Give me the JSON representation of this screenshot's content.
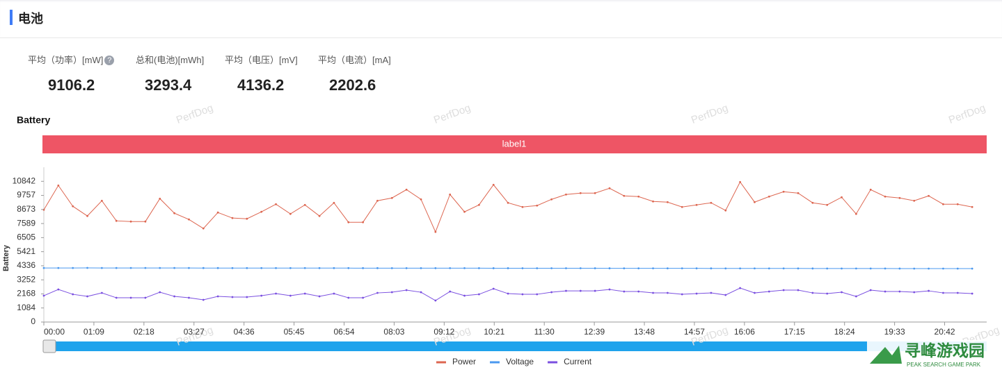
{
  "header": {
    "title": "电池"
  },
  "stats": [
    {
      "label": "平均（功率）[mW]",
      "value": 9106.2
    },
    {
      "label": "总和(电池)[mWh]",
      "value": 3293.4
    },
    {
      "label": "平均（电压）[mV]",
      "value": 4136.2
    },
    {
      "label": "平均（电流）[mA]",
      "value": 2202.6
    }
  ],
  "watermark": "PerfDog",
  "logo": {
    "title": "寻峰游戏园",
    "subtitle": "PEAK SEARCH GAME PARK"
  },
  "chart_data": {
    "type": "line",
    "title": "Battery",
    "band_label": "label1",
    "band_color": "#ee5565",
    "y_label": "Battery",
    "x": [
      0,
      20,
      40,
      60,
      80,
      100,
      120,
      140,
      160,
      180,
      200,
      220,
      240,
      260,
      280,
      300,
      320,
      340,
      360,
      380,
      400,
      420,
      440,
      460,
      480,
      500,
      520,
      540,
      560,
      580,
      600,
      620,
      640,
      660,
      680,
      700,
      720,
      740,
      760,
      780,
      800,
      820,
      840,
      860,
      880,
      900,
      920,
      940,
      960,
      980,
      1000,
      1020,
      1040,
      1060,
      1080,
      1100,
      1120,
      1140,
      1160,
      1180,
      1200,
      1220,
      1240,
      1260,
      1280
    ],
    "series": [
      {
        "name": "Power",
        "color": "#dd6650",
        "values": [
          8652,
          10522,
          8919,
          8172,
          9347,
          7798,
          7744,
          7744,
          9507,
          8385,
          7905,
          7210,
          8439,
          8012,
          7958,
          8492,
          9080,
          8332,
          9026,
          8172,
          9187,
          7691,
          7691,
          9347,
          9560,
          10201,
          9454,
          6943,
          9827,
          8492,
          9026,
          10575,
          9187,
          8866,
          8973,
          9454,
          9827,
          9934,
          9934,
          10308,
          9721,
          9667,
          9293,
          9240,
          8866,
          9026,
          9187,
          8599,
          10789,
          9240,
          9667,
          10041,
          9934,
          9187,
          9026,
          9614,
          8332,
          10201,
          9667,
          9560,
          9347,
          9721,
          9080,
          9080,
          8866
        ]
      },
      {
        "name": "Voltage",
        "color": "#4a98ef",
        "values": [
          4166,
          4166,
          4166,
          4170,
          4165,
          4165,
          4164,
          4164,
          4163,
          4163,
          4162,
          4161,
          4161,
          4160,
          4160,
          4159,
          4158,
          4158,
          4157,
          4156,
          4156,
          4155,
          4154,
          4154,
          4153,
          4152,
          4152,
          4151,
          4150,
          4150,
          4149,
          4148,
          4147,
          4146,
          4146,
          4145,
          4144,
          4143,
          4142,
          4141,
          4140,
          4139,
          4138,
          4137,
          4136,
          4135,
          4134,
          4133,
          4132,
          4131,
          4130,
          4129,
          4128,
          4127,
          4126,
          4125,
          4124,
          4123,
          4122,
          4120,
          4119,
          4118,
          4117,
          4116,
          4115
        ]
      },
      {
        "name": "Current",
        "color": "#7a4fe0",
        "values": [
          2030,
          2510,
          2136,
          1976,
          2243,
          1869,
          1869,
          1869,
          2297,
          1976,
          1869,
          1709,
          1976,
          1923,
          1923,
          2030,
          2190,
          2030,
          2190,
          1976,
          2190,
          1869,
          1869,
          2243,
          2297,
          2457,
          2297,
          1656,
          2350,
          2030,
          2136,
          2564,
          2190,
          2136,
          2136,
          2297,
          2403,
          2403,
          2403,
          2510,
          2350,
          2350,
          2243,
          2243,
          2136,
          2190,
          2243,
          2083,
          2617,
          2243,
          2350,
          2457,
          2457,
          2243,
          2190,
          2297,
          1976,
          2457,
          2350,
          2350,
          2297,
          2403,
          2243,
          2243,
          2190
        ]
      }
    ],
    "xlim": [
      0,
      1300
    ],
    "xticks": [
      {
        "value": 0,
        "label": "00:00"
      },
      {
        "value": 69,
        "label": "01:09"
      },
      {
        "value": 138,
        "label": "02:18"
      },
      {
        "value": 207,
        "label": "03:27"
      },
      {
        "value": 276,
        "label": "04:36"
      },
      {
        "value": 345,
        "label": "05:45"
      },
      {
        "value": 414,
        "label": "06:54"
      },
      {
        "value": 483,
        "label": "08:03"
      },
      {
        "value": 552,
        "label": "09:12"
      },
      {
        "value": 621,
        "label": "10:21"
      },
      {
        "value": 690,
        "label": "11:30"
      },
      {
        "value": 759,
        "label": "12:39"
      },
      {
        "value": 828,
        "label": "13:48"
      },
      {
        "value": 897,
        "label": "14:57"
      },
      {
        "value": 966,
        "label": "16:06"
      },
      {
        "value": 1035,
        "label": "17:15"
      },
      {
        "value": 1104,
        "label": "18:24"
      },
      {
        "value": 1173,
        "label": "19:33"
      },
      {
        "value": 1242,
        "label": "20:42"
      }
    ],
    "ylim": [
      0,
      11926
    ],
    "yticks": [
      0,
      1084,
      2168,
      3252,
      4336,
      5421,
      6505,
      7589,
      8673,
      9757,
      10842
    ],
    "grid": false,
    "legend": "bottom"
  }
}
